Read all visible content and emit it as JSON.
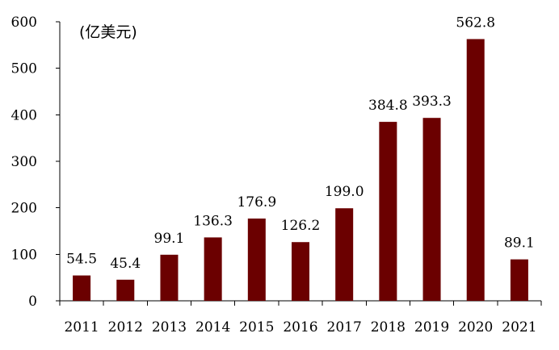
{
  "chart_data": {
    "type": "bar",
    "ylabel": "(亿美元)",
    "categories": [
      "2011",
      "2012",
      "2013",
      "2014",
      "2015",
      "2016",
      "2017",
      "2018",
      "2019",
      "2020",
      "2021"
    ],
    "values": [
      54.5,
      45.4,
      99.1,
      136.3,
      176.9,
      126.2,
      199.0,
      384.8,
      393.3,
      562.8,
      89.1
    ],
    "data_labels": [
      "54.5",
      "45.4",
      "99.1",
      "136.3",
      "176.9",
      "126.2",
      "199.0",
      "384.8",
      "393.3",
      "562.8",
      "89.1"
    ],
    "ylim": [
      0,
      600
    ],
    "yticks": [
      "0",
      "100",
      "200",
      "300",
      "400",
      "500",
      "600"
    ],
    "grid": false,
    "legend": "none",
    "bar_color": "#6b0000"
  }
}
